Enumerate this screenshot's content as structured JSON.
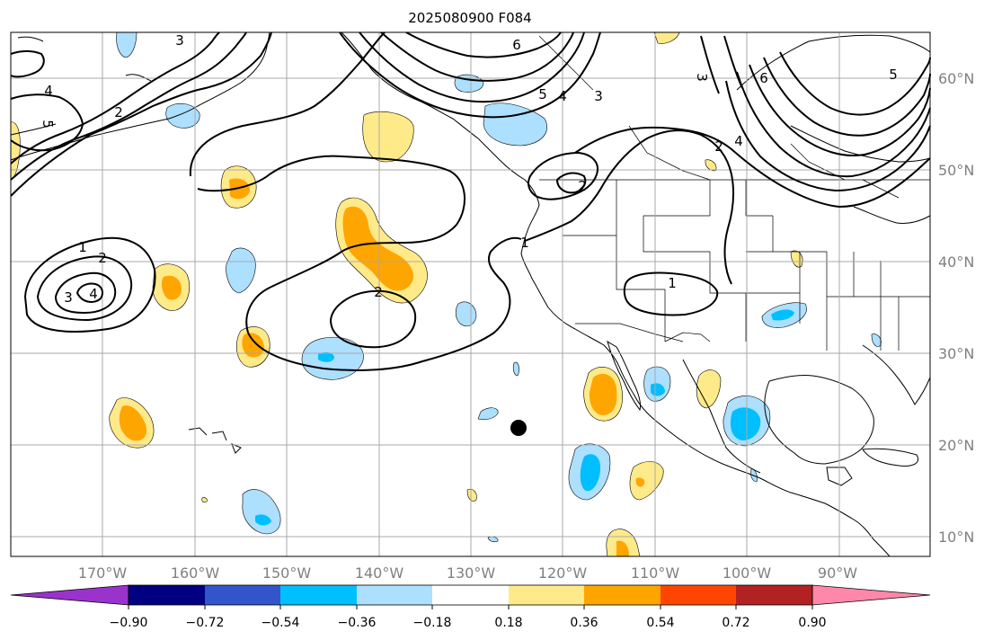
{
  "title": "2025080900 F084",
  "lon_labels": [
    "170°W",
    "160°W",
    "150°W",
    "140°W",
    "130°W",
    "120°W",
    "110°W",
    "100°W",
    "90°W"
  ],
  "lat_labels": [
    "60°N",
    "50°N",
    "40°N",
    "30°N",
    "20°N",
    "10°N"
  ],
  "colorbar": {
    "tick_labels": [
      "−0.90",
      "−0.72",
      "−0.54",
      "−0.36",
      "−0.18",
      "0.18",
      "0.36",
      "0.54",
      "0.72",
      "0.90"
    ],
    "colors": [
      "#9933cc",
      "#000080",
      "#3355cc",
      "#00bfff",
      "#addfff",
      "#ffffff",
      "#ffea8a",
      "#ffa500",
      "#ff4500",
      "#b22222",
      "#ff88aa"
    ]
  },
  "contour_labels": [
    "4",
    "5",
    "3",
    "2",
    "1",
    "2",
    "3",
    "4",
    "6",
    "5",
    "4",
    "3",
    "3",
    "6",
    "5",
    "2",
    "4",
    "2",
    "1",
    "1",
    "2"
  ],
  "colors": {
    "light_blue": "#addfff",
    "blue": "#00bfff",
    "light_yellow": "#ffea8a",
    "orange": "#ffa500"
  },
  "marker": "storm-center-dot"
}
